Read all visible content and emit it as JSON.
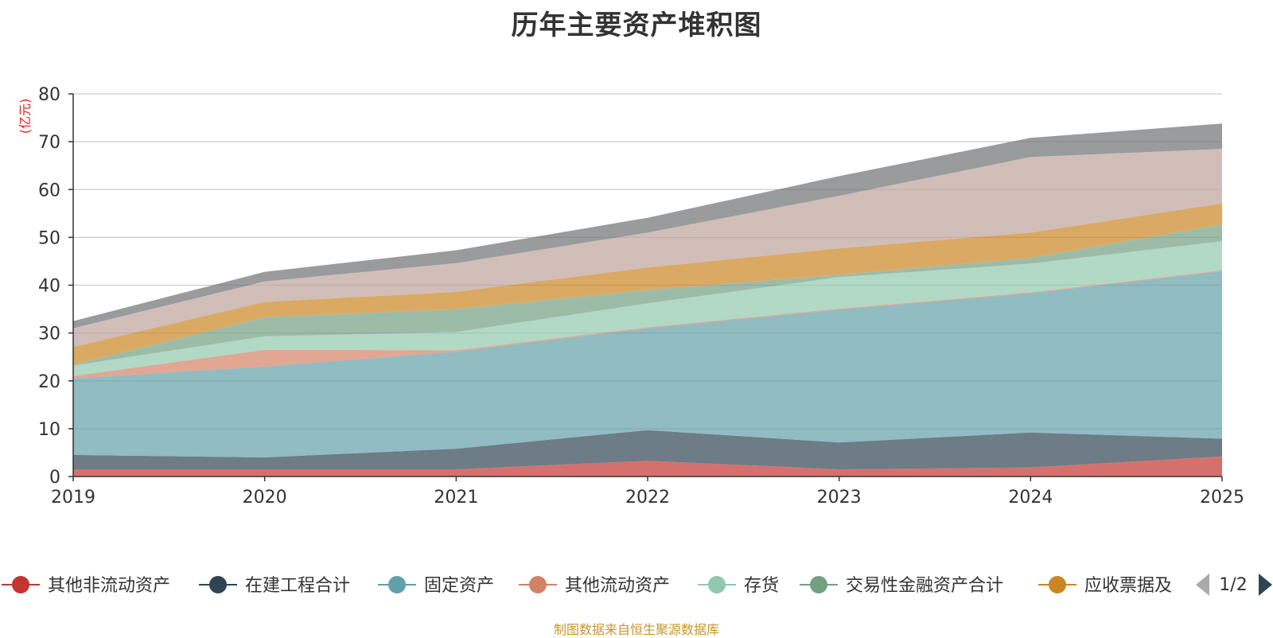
{
  "title": "历年主要资产堆积图",
  "source_note": "制图数据来自恒生聚源数据库",
  "legend": {
    "page_indicator": "1/2",
    "prev_icon": "triangle-left-icon",
    "next_icon": "triangle-right-icon"
  },
  "chart_data": {
    "type": "area",
    "stacked": true,
    "title": "历年主要资产堆积图",
    "ylabel": "(亿元)",
    "xlabel": "",
    "x": [
      "2019",
      "2020",
      "2021",
      "2022",
      "2023",
      "2024",
      "2025"
    ],
    "ylim": [
      0,
      80
    ],
    "yticks": [
      0,
      10,
      20,
      30,
      40,
      50,
      60,
      70,
      80
    ],
    "grid": true,
    "legend_position": "bottom",
    "series": [
      {
        "name": "其他非流动资产",
        "color": "#c23531",
        "line_color": "#c23531",
        "values": [
          1.5,
          1.5,
          1.5,
          3.3,
          1.5,
          1.9,
          4.2
        ]
      },
      {
        "name": "在建工程合计",
        "color": "#2f4554",
        "line_color": "#2f4554",
        "values": [
          3.0,
          2.5,
          4.3,
          6.4,
          5.6,
          7.3,
          3.7
        ]
      },
      {
        "name": "固定资产",
        "color": "#61a0a8",
        "line_color": "#61a0a8",
        "values": [
          16.0,
          19.0,
          20.3,
          21.3,
          27.8,
          29.1,
          35.0
        ]
      },
      {
        "name": "其他流动资产",
        "color": "#d48265",
        "line_color": "#d48265",
        "values": [
          0.5,
          3.5,
          0.3,
          0.2,
          0.2,
          0.2,
          0.2
        ]
      },
      {
        "name": "存货",
        "color": "#91c7ae",
        "line_color": "#91c7ae",
        "values": [
          2.2,
          2.8,
          3.8,
          5.0,
          6.6,
          6.0,
          6.1
        ]
      },
      {
        "name": "交易性金融资产合计",
        "color": "#749f83",
        "line_color": "#749f83",
        "values": [
          0.2,
          4.0,
          4.8,
          2.8,
          0.5,
          1.2,
          3.5
        ]
      },
      {
        "name": "应收票据及",
        "color": "#ca8622",
        "line_color": "#ca8622",
        "values": [
          3.7,
          3.2,
          3.6,
          4.7,
          5.5,
          5.3,
          4.4
        ]
      },
      {
        "name": "",
        "color": "#bda29a",
        "values": [
          3.9,
          4.3,
          6.0,
          7.3,
          11.0,
          15.8,
          11.4
        ]
      },
      {
        "name": "",
        "color": "#6e7074",
        "values": [
          1.5,
          2.0,
          2.7,
          3.1,
          4.1,
          4.0,
          5.3
        ]
      }
    ]
  }
}
